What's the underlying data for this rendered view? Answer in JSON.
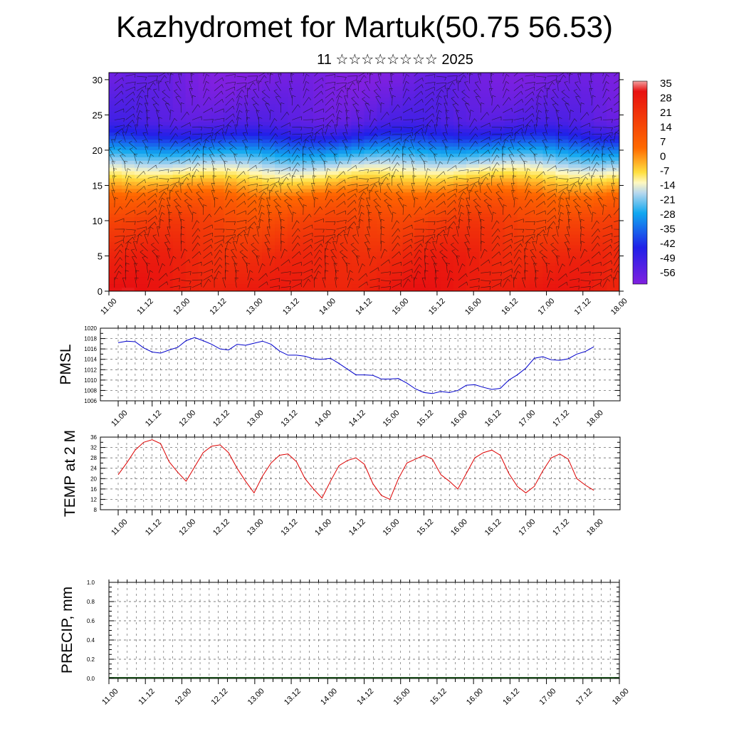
{
  "header": {
    "title": "Kazhydromet for Martuk(50.75 56.53)",
    "subtitle": "11 ☆☆☆☆☆☆☆☆ 2025"
  },
  "time_labels": [
    "11.00",
    "11.12",
    "12.00",
    "12.12",
    "13.00",
    "13.12",
    "14.00",
    "14.12",
    "15.00",
    "15.12",
    "16.00",
    "16.12",
    "17.00",
    "17.12",
    "18.00"
  ],
  "colors": {
    "pmsl_line": "#0000cc",
    "temp_line": "#dd0000",
    "grid": "#555555"
  },
  "chart_data": [
    {
      "type": "heatmap",
      "name": "",
      "x_labels": [
        "11.00",
        "11.12",
        "12.00",
        "12.12",
        "13.00",
        "13.12",
        "14.00",
        "14.12",
        "15.00",
        "15.12",
        "16.00",
        "16.12",
        "17.00",
        "17.12",
        "18.00"
      ],
      "ylim": [
        0,
        31
      ],
      "yticks": [
        0,
        5,
        10,
        15,
        20,
        25,
        30
      ],
      "colorbar": {
        "labels": [
          "35",
          "28",
          "21",
          "14",
          "7",
          "0",
          "-7",
          "-14",
          "-21",
          "-28",
          "-35",
          "-42",
          "-49",
          "-56"
        ],
        "range": [
          -60,
          38
        ]
      },
      "level_temperature_profile": [
        {
          "h": 0,
          "t": 30
        },
        {
          "h": 5,
          "t": 26
        },
        {
          "h": 10,
          "t": 18
        },
        {
          "h": 13,
          "t": 10
        },
        {
          "h": 15,
          "t": 0
        },
        {
          "h": 16.5,
          "t": -8
        },
        {
          "h": 18,
          "t": -16
        },
        {
          "h": 20,
          "t": -28
        },
        {
          "h": 22,
          "t": -42
        },
        {
          "h": 24,
          "t": -52
        },
        {
          "h": 27,
          "t": -55
        },
        {
          "h": 30,
          "t": -58
        }
      ],
      "overlay": "wind barbs"
    },
    {
      "type": "line",
      "ylabel": "PMSL",
      "ylim": [
        1006,
        1020
      ],
      "yticks": [
        1006,
        1008,
        1010,
        1012,
        1014,
        1016,
        1018,
        1020
      ],
      "x_labels": [
        "11.00",
        "11.12",
        "12.00",
        "12.12",
        "13.00",
        "13.12",
        "14.00",
        "14.12",
        "15.00",
        "15.12",
        "16.00",
        "16.12",
        "17.00",
        "17.12",
        "18.00"
      ],
      "series": [
        {
          "values": [
            1017.2,
            1017.5,
            1017.4,
            1016.2,
            1015.4,
            1015.2,
            1015.8,
            1016.3,
            1017.6,
            1018.2,
            1017.6,
            1016.9,
            1016.0,
            1015.8,
            1016.9,
            1016.7,
            1017.1,
            1017.5,
            1016.9,
            1015.6,
            1014.8,
            1014.8,
            1014.6,
            1014.1,
            1014.0,
            1014.2,
            1013.2,
            1012.1,
            1011.0,
            1011.0,
            1010.9,
            1010.2,
            1010.2,
            1010.3,
            1009.4,
            1008.3,
            1007.6,
            1007.4,
            1007.8,
            1007.6,
            1008.0,
            1009.0,
            1009.1,
            1008.6,
            1008.2,
            1008.4,
            1010.0,
            1011.0,
            1012.3,
            1014.2,
            1014.5,
            1013.9,
            1013.8,
            1014.1,
            1015.0,
            1015.5,
            1016.4
          ]
        }
      ]
    },
    {
      "type": "line",
      "ylabel": "TEMP at 2 M",
      "ylim": [
        8,
        36
      ],
      "yticks": [
        8,
        12,
        16,
        20,
        24,
        28,
        32,
        36
      ],
      "x_labels": [
        "11.00",
        "11.12",
        "12.00",
        "12.12",
        "13.00",
        "13.12",
        "14.00",
        "14.12",
        "15.00",
        "15.12",
        "16.00",
        "16.12",
        "17.00",
        "17.12",
        "18.00"
      ],
      "series": [
        {
          "values": [
            21.5,
            26,
            31,
            34,
            35,
            33.5,
            26.5,
            22.5,
            19,
            24.5,
            30,
            32.5,
            33,
            30,
            24,
            19,
            14.5,
            21,
            26,
            29,
            29.5,
            26.5,
            20,
            16,
            12.5,
            19,
            25,
            27,
            28,
            25.5,
            18,
            13.5,
            12,
            20,
            26,
            27.5,
            29,
            27.5,
            21.5,
            19,
            16,
            22,
            28,
            30,
            31,
            29,
            22,
            17,
            14.5,
            17,
            23,
            28,
            29.5,
            27.5,
            20,
            17.5,
            15.5
          ]
        }
      ]
    },
    {
      "type": "bar",
      "ylabel": "PRECIP, mm",
      "ylim": [
        0,
        1.0
      ],
      "yticks": [
        "0.0",
        "0.2",
        "0.4",
        "0.6",
        "0.8",
        "1.0"
      ],
      "x_labels": [
        "11.00",
        "11.12",
        "12.00",
        "12.12",
        "13.00",
        "13.12",
        "14.00",
        "14.12",
        "15.00",
        "15.12",
        "16.00",
        "16.12",
        "17.00",
        "17.12",
        "18.00"
      ],
      "values": [
        0,
        0,
        0,
        0,
        0,
        0,
        0,
        0,
        0,
        0,
        0,
        0,
        0,
        0,
        0,
        0,
        0,
        0,
        0,
        0,
        0,
        0,
        0,
        0,
        0,
        0,
        0,
        0,
        0,
        0,
        0,
        0,
        0,
        0,
        0,
        0,
        0,
        0,
        0,
        0,
        0,
        0,
        0,
        0,
        0,
        0,
        0,
        0,
        0,
        0,
        0,
        0,
        0,
        0,
        0,
        0,
        0
      ]
    }
  ]
}
